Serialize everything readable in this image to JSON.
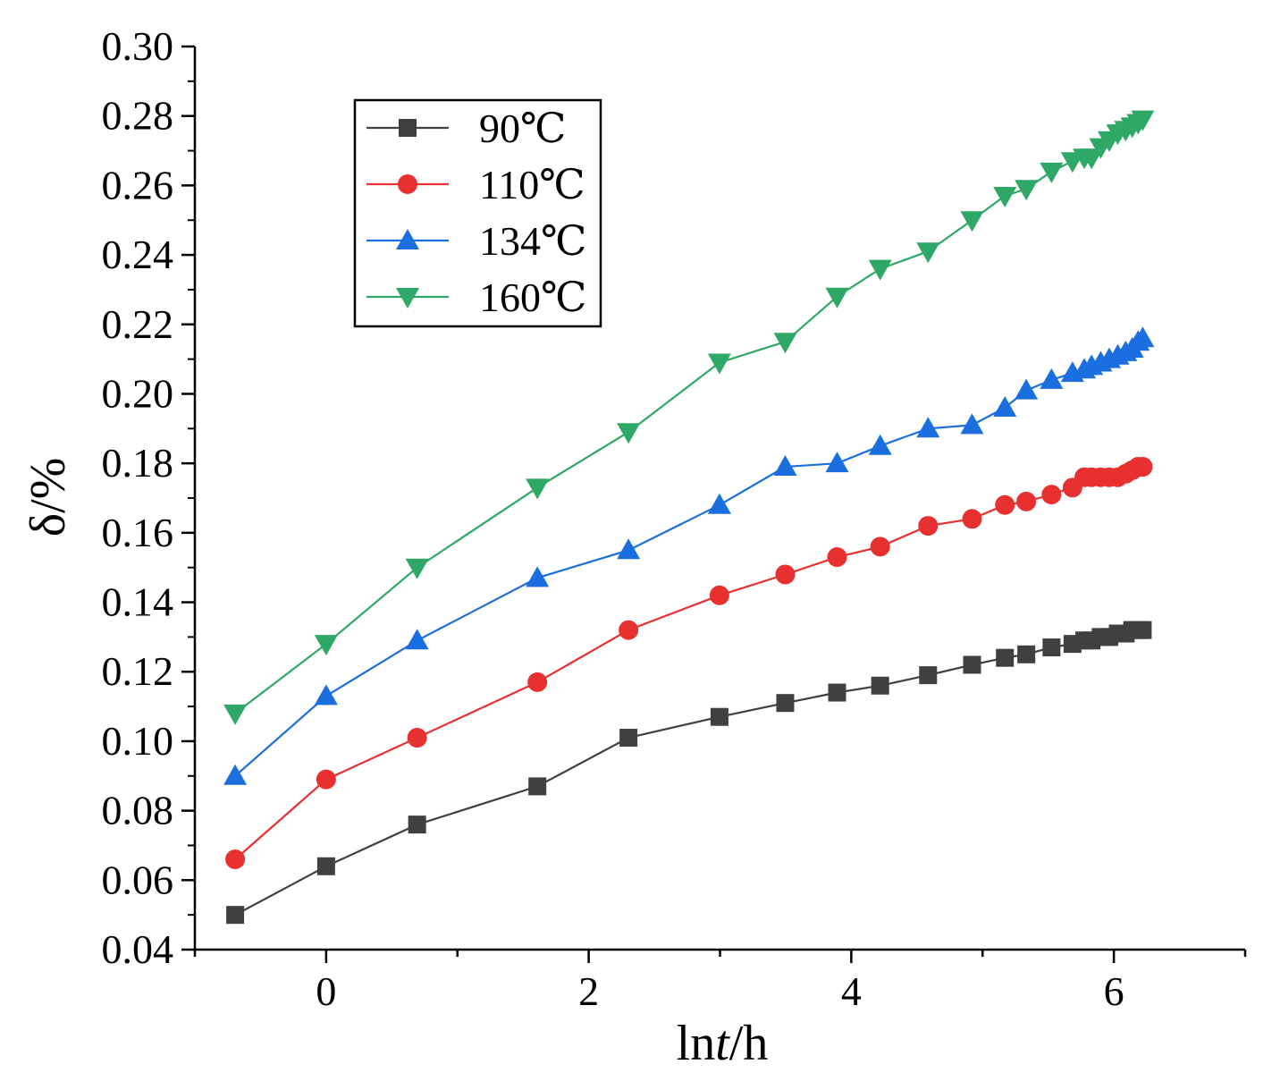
{
  "chart_data": {
    "type": "line",
    "xlabel_prefix": "ln",
    "xlabel_italic": "t",
    "xlabel_suffix": "/h",
    "ylabel": "δ/%",
    "xlim": [
      -1,
      7
    ],
    "ylim": [
      0.04,
      0.3
    ],
    "xticks": [
      0,
      2,
      4,
      6
    ],
    "xtick_labels": [
      "0",
      "2",
      "4",
      "6"
    ],
    "yticks": [
      0.04,
      0.06,
      0.08,
      0.1,
      0.12,
      0.14,
      0.16,
      0.18,
      0.2,
      0.22,
      0.24,
      0.26,
      0.28,
      0.3
    ],
    "ytick_labels": [
      "0.04",
      "0.06",
      "0.08",
      "0.10",
      "0.12",
      "0.14",
      "0.16",
      "0.18",
      "0.20",
      "0.22",
      "0.24",
      "0.26",
      "0.28",
      "0.30"
    ],
    "legend_position": "top-left",
    "x": [
      -0.693,
      0.0,
      0.693,
      1.609,
      2.303,
      2.996,
      3.497,
      3.892,
      4.22,
      4.585,
      4.92,
      5.17,
      5.333,
      5.525,
      5.685,
      5.775,
      5.83,
      5.9,
      5.965,
      6.03,
      6.09,
      6.14,
      6.185,
      6.22
    ],
    "series": [
      {
        "name": "90℃",
        "color": "#404040",
        "marker": "square",
        "values": [
          0.05,
          0.064,
          0.076,
          0.087,
          0.101,
          0.107,
          0.111,
          0.114,
          0.116,
          0.119,
          0.122,
          0.124,
          0.125,
          0.127,
          0.128,
          0.129,
          0.129,
          0.13,
          0.13,
          0.131,
          0.131,
          0.132,
          0.132,
          0.132
        ]
      },
      {
        "name": "110℃",
        "color": "#e83030",
        "marker": "circle",
        "values": [
          0.066,
          0.089,
          0.101,
          0.117,
          0.132,
          0.142,
          0.148,
          0.153,
          0.156,
          0.162,
          0.164,
          0.168,
          0.169,
          0.171,
          0.173,
          0.176,
          0.176,
          0.176,
          0.176,
          0.176,
          0.177,
          0.178,
          0.179,
          0.179
        ]
      },
      {
        "name": "134℃",
        "color": "#1a6ee0",
        "marker": "triangle-up",
        "values": [
          0.09,
          0.113,
          0.129,
          0.147,
          0.155,
          0.168,
          0.179,
          0.18,
          0.185,
          0.19,
          0.191,
          0.196,
          0.201,
          0.204,
          0.206,
          0.207,
          0.208,
          0.209,
          0.21,
          0.211,
          0.212,
          0.213,
          0.215,
          0.216
        ]
      },
      {
        "name": "160℃",
        "color": "#2ea866",
        "marker": "triangle-down",
        "values": [
          0.108,
          0.128,
          0.15,
          0.173,
          0.189,
          0.209,
          0.215,
          0.228,
          0.236,
          0.241,
          0.25,
          0.257,
          0.259,
          0.264,
          0.267,
          0.268,
          0.268,
          0.271,
          0.273,
          0.275,
          0.276,
          0.277,
          0.278,
          0.279
        ]
      }
    ]
  }
}
